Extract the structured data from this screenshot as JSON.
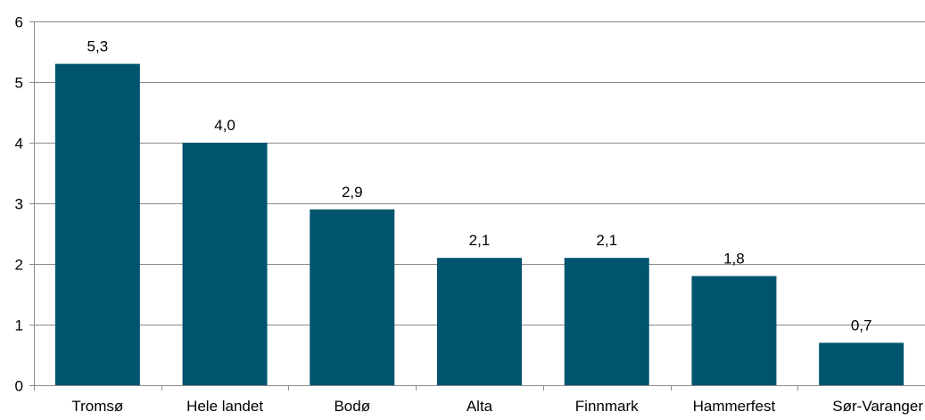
{
  "chart_data": {
    "type": "bar",
    "categories": [
      "Tromsø",
      "Hele landet",
      "Bodø",
      "Alta",
      "Finnmark",
      "Hammerfest",
      "Sør-Varanger"
    ],
    "values": [
      5.3,
      4.0,
      2.9,
      2.1,
      2.1,
      1.8,
      0.7
    ],
    "value_labels": [
      "5,3",
      "4,0",
      "2,9",
      "2,1",
      "2,1",
      "1,8",
      "0,7"
    ],
    "y_ticks": [
      "0",
      "1",
      "2",
      "3",
      "4",
      "5",
      "6"
    ],
    "ylim": [
      0,
      6
    ],
    "grid": true,
    "legend": "none",
    "title": "",
    "xlabel": "",
    "ylabel": "",
    "colors": {
      "bar": "#00546e",
      "grid": "#8c8c8c",
      "axis": "#8c8c8c"
    }
  }
}
